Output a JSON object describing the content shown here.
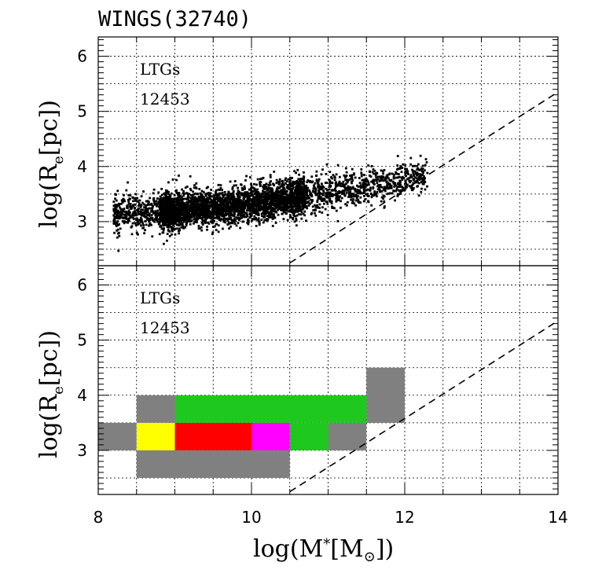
{
  "chart_data": [
    {
      "type": "scatter",
      "title": "WINGS(32740)",
      "panel_label": "LTGs",
      "panel_count": "12453",
      "ylabel_main": "log(R",
      "ylabel_sub": "e",
      "ylabel_end": "[pc])",
      "xlim": [
        8,
        14
      ],
      "ylim": [
        2.2,
        6.35
      ],
      "yticks": [
        "3",
        "4",
        "5",
        "6"
      ],
      "grid": true,
      "point_cloud": {
        "description_x_range": [
          8.2,
          12.3
        ],
        "trend": [
          [
            8.3,
            3.15
          ],
          [
            9.0,
            3.2
          ],
          [
            9.5,
            3.25
          ],
          [
            10.0,
            3.32
          ],
          [
            10.5,
            3.42
          ],
          [
            11.0,
            3.55
          ],
          [
            11.5,
            3.65
          ],
          [
            12.0,
            3.75
          ],
          [
            12.3,
            3.85
          ]
        ],
        "n_points": 12453
      },
      "dashed_line": [
        [
          10.5,
          2.25
        ],
        [
          14.0,
          5.35
        ]
      ],
      "color": "#000000"
    },
    {
      "type": "heatmap",
      "panel_label": "LTGs",
      "panel_count": "12453",
      "ylabel_main": "log(R",
      "ylabel_sub": "e",
      "ylabel_end": "[pc])",
      "xlabel_main": "log(M",
      "xlabel_star": "*",
      "xlabel_mid": "[M",
      "xlabel_sun": "⊙",
      "xlabel_end": "])",
      "xlim": [
        8,
        14
      ],
      "ylim": [
        2.2,
        6.35
      ],
      "xticks": [
        "8",
        "10",
        "12",
        "14"
      ],
      "yticks": [
        "3",
        "4",
        "5",
        "6"
      ],
      "grid": true,
      "cells": [
        {
          "x0": 8.0,
          "x1": 8.5,
          "y0": 3.0,
          "y1": 3.5,
          "color": "#808080"
        },
        {
          "x0": 8.5,
          "x1": 9.0,
          "y0": 3.0,
          "y1": 3.5,
          "color": "#ffff00"
        },
        {
          "x0": 9.0,
          "x1": 10.0,
          "y0": 3.0,
          "y1": 3.5,
          "color": "#ff0000"
        },
        {
          "x0": 10.0,
          "x1": 10.5,
          "y0": 3.0,
          "y1": 3.5,
          "color": "#ff00ff"
        },
        {
          "x0": 10.5,
          "x1": 11.0,
          "y0": 3.0,
          "y1": 3.5,
          "color": "#1ec81e"
        },
        {
          "x0": 11.0,
          "x1": 11.5,
          "y0": 3.0,
          "y1": 3.5,
          "color": "#808080"
        },
        {
          "x0": 8.5,
          "x1": 9.0,
          "y0": 3.5,
          "y1": 4.0,
          "color": "#808080"
        },
        {
          "x0": 9.0,
          "x1": 11.5,
          "y0": 3.5,
          "y1": 4.0,
          "color": "#1ec81e"
        },
        {
          "x0": 11.5,
          "x1": 12.0,
          "y0": 3.5,
          "y1": 4.5,
          "color": "#808080"
        },
        {
          "x0": 8.5,
          "x1": 10.5,
          "y0": 2.5,
          "y1": 3.0,
          "color": "#808080"
        }
      ],
      "dashed_line": [
        [
          10.5,
          2.25
        ],
        [
          14.0,
          5.35
        ]
      ]
    }
  ]
}
